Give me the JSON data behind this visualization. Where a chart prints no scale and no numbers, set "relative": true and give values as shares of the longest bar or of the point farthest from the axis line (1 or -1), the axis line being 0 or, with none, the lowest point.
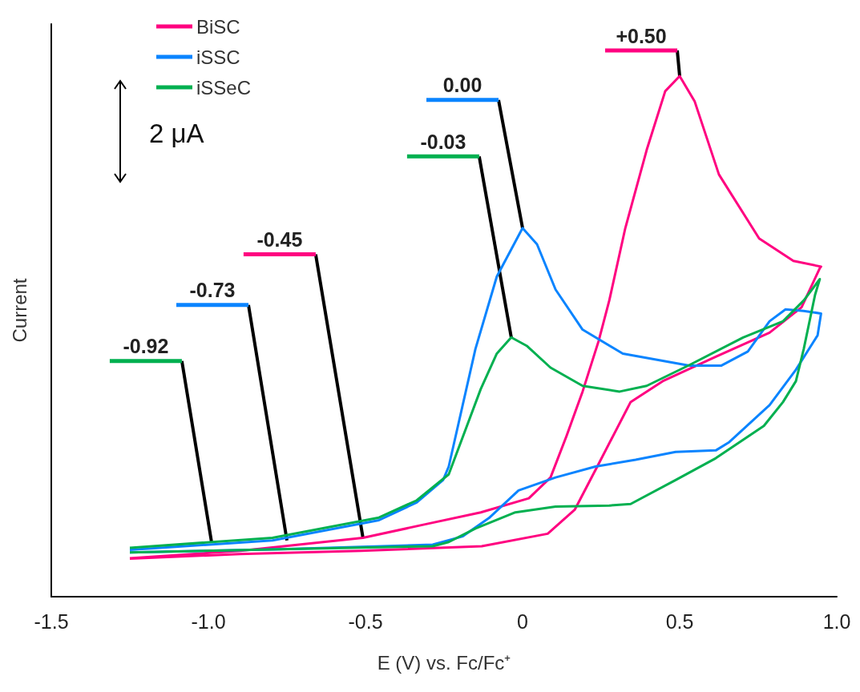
{
  "chart_data": {
    "type": "line",
    "relative": true,
    "xlabel": "E (V) vs. Fc/Fc⁺",
    "ylabel": "Current",
    "xlim": [
      -1.5,
      1.0
    ],
    "xticks": [
      -1.5,
      {
        "value": -1.0,
        "label": "-1.0"
      },
      -0.5,
      0,
      0.5,
      {
        "value": 1.0,
        "label": "1.0"
      }
    ],
    "legend": "top left",
    "series": [
      {
        "name": "BiSC",
        "color": "#ff0080",
        "x": [
          -1.25,
          -0.9,
          -0.515,
          -0.13,
          0.08,
          0.166,
          0.242,
          0.344,
          0.446,
          0.615,
          0.786,
          0.888,
          0.946,
          0.95,
          0.862,
          0.753,
          0.625,
          0.548,
          0.5,
          0.454,
          0.395,
          0.327,
          0.276,
          0.242,
          0.191,
          0.14,
          0.089,
          0.02,
          -0.133,
          -0.31,
          -0.508,
          -0.898,
          -1.25
        ],
        "values": [
          0.073,
          0.082,
          0.088,
          0.097,
          0.121,
          0.167,
          0.255,
          0.374,
          0.414,
          0.461,
          0.507,
          0.556,
          0.631,
          0.634,
          0.645,
          0.688,
          0.811,
          0.951,
          1.0,
          0.971,
          0.858,
          0.708,
          0.569,
          0.491,
          0.394,
          0.309,
          0.229,
          0.189,
          0.162,
          0.139,
          0.113,
          0.088,
          0.074
        ]
      },
      {
        "name": "iSSC",
        "color": "#0a84ff",
        "x": [
          -1.25,
          -0.77,
          -0.286,
          -0.19,
          -0.107,
          -0.013,
          0.105,
          0.232,
          0.36,
          0.487,
          0.615,
          0.658,
          0.786,
          0.87,
          0.939,
          0.95,
          0.895,
          0.837,
          0.786,
          0.717,
          0.633,
          0.531,
          0.319,
          0.191,
          0.105,
          0.046,
          0.0,
          -0.082,
          -0.15,
          -0.235,
          -0.253,
          -0.337,
          -0.457,
          -0.796,
          -1.25
        ],
        "values": [
          0.085,
          0.091,
          0.1,
          0.116,
          0.151,
          0.204,
          0.229,
          0.25,
          0.263,
          0.278,
          0.281,
          0.297,
          0.368,
          0.436,
          0.502,
          0.544,
          0.549,
          0.552,
          0.529,
          0.471,
          0.444,
          0.444,
          0.467,
          0.513,
          0.59,
          0.677,
          0.708,
          0.615,
          0.476,
          0.25,
          0.224,
          0.181,
          0.147,
          0.108,
          0.09
        ]
      },
      {
        "name": "iSSeC",
        "color": "#00b050",
        "x": [
          -1.25,
          -0.77,
          -0.286,
          -0.235,
          -0.15,
          -0.023,
          0.105,
          0.276,
          0.344,
          0.487,
          0.615,
          0.768,
          0.829,
          0.87,
          0.895,
          0.931,
          0.946,
          0.895,
          0.829,
          0.702,
          0.531,
          0.395,
          0.309,
          0.191,
          0.089,
          0.013,
          -0.036,
          -0.082,
          -0.133,
          -0.235,
          -0.337,
          -0.457,
          -0.796,
          -1.25
        ],
        "values": [
          0.085,
          0.091,
          0.097,
          0.105,
          0.131,
          0.162,
          0.173,
          0.175,
          0.178,
          0.224,
          0.266,
          0.328,
          0.374,
          0.414,
          0.476,
          0.58,
          0.61,
          0.569,
          0.529,
          0.498,
          0.445,
          0.405,
          0.394,
          0.405,
          0.44,
          0.482,
          0.498,
          0.467,
          0.399,
          0.235,
          0.185,
          0.152,
          0.113,
          0.094
        ]
      }
    ],
    "annotations": [
      {
        "text": "+0.50",
        "x": 0.5,
        "y": 1.0
      },
      {
        "text": "0.00",
        "x": 0.0,
        "y": 0.708
      },
      {
        "text": "-0.03",
        "x": -0.036,
        "y": 0.498
      },
      {
        "text": "-0.45",
        "x": -0.508,
        "y": 0.113
      },
      {
        "text": "-0.73",
        "x": -0.75,
        "y": 0.108
      },
      {
        "text": "-0.92",
        "x": -0.99,
        "y": 0.105
      },
      "2 μA"
    ]
  }
}
